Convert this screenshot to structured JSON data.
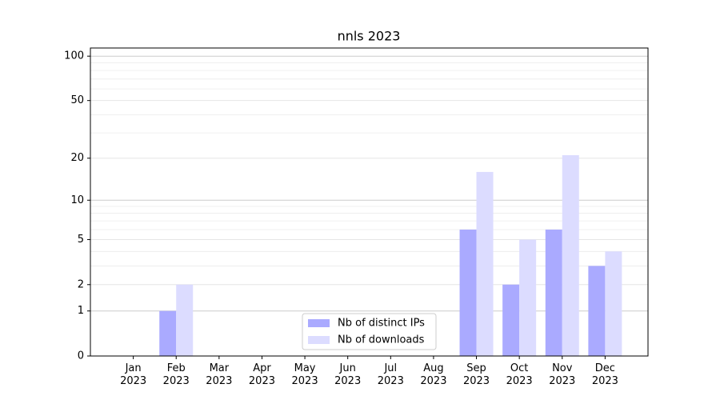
{
  "chart_data": {
    "type": "bar",
    "title": "nnls 2023",
    "scale": "log1p",
    "categories": [
      "Jan 2023",
      "Feb 2023",
      "Mar 2023",
      "Apr 2023",
      "May 2023",
      "Jun 2023",
      "Jul 2023",
      "Aug 2023",
      "Sep 2023",
      "Oct 2023",
      "Nov 2023",
      "Dec 2023"
    ],
    "series": [
      {
        "name": "Nb of distinct IPs",
        "color": "#aaaaff",
        "values": [
          0,
          1,
          0,
          0,
          0,
          0,
          0,
          0,
          6,
          2,
          6,
          3
        ]
      },
      {
        "name": "Nb of downloads",
        "color": "#dcdcff",
        "values": [
          0,
          2,
          0,
          0,
          0,
          0,
          0,
          0,
          16,
          5,
          21,
          4
        ]
      }
    ],
    "ylim": [
      0,
      113.5
    ],
    "yticks": [
      0,
      1,
      2,
      5,
      10,
      20,
      50,
      100
    ],
    "minor_yticks": [
      3,
      4,
      6,
      7,
      8,
      9,
      30,
      40,
      60,
      70,
      80,
      90
    ],
    "grid": true,
    "legend": "lower center"
  }
}
